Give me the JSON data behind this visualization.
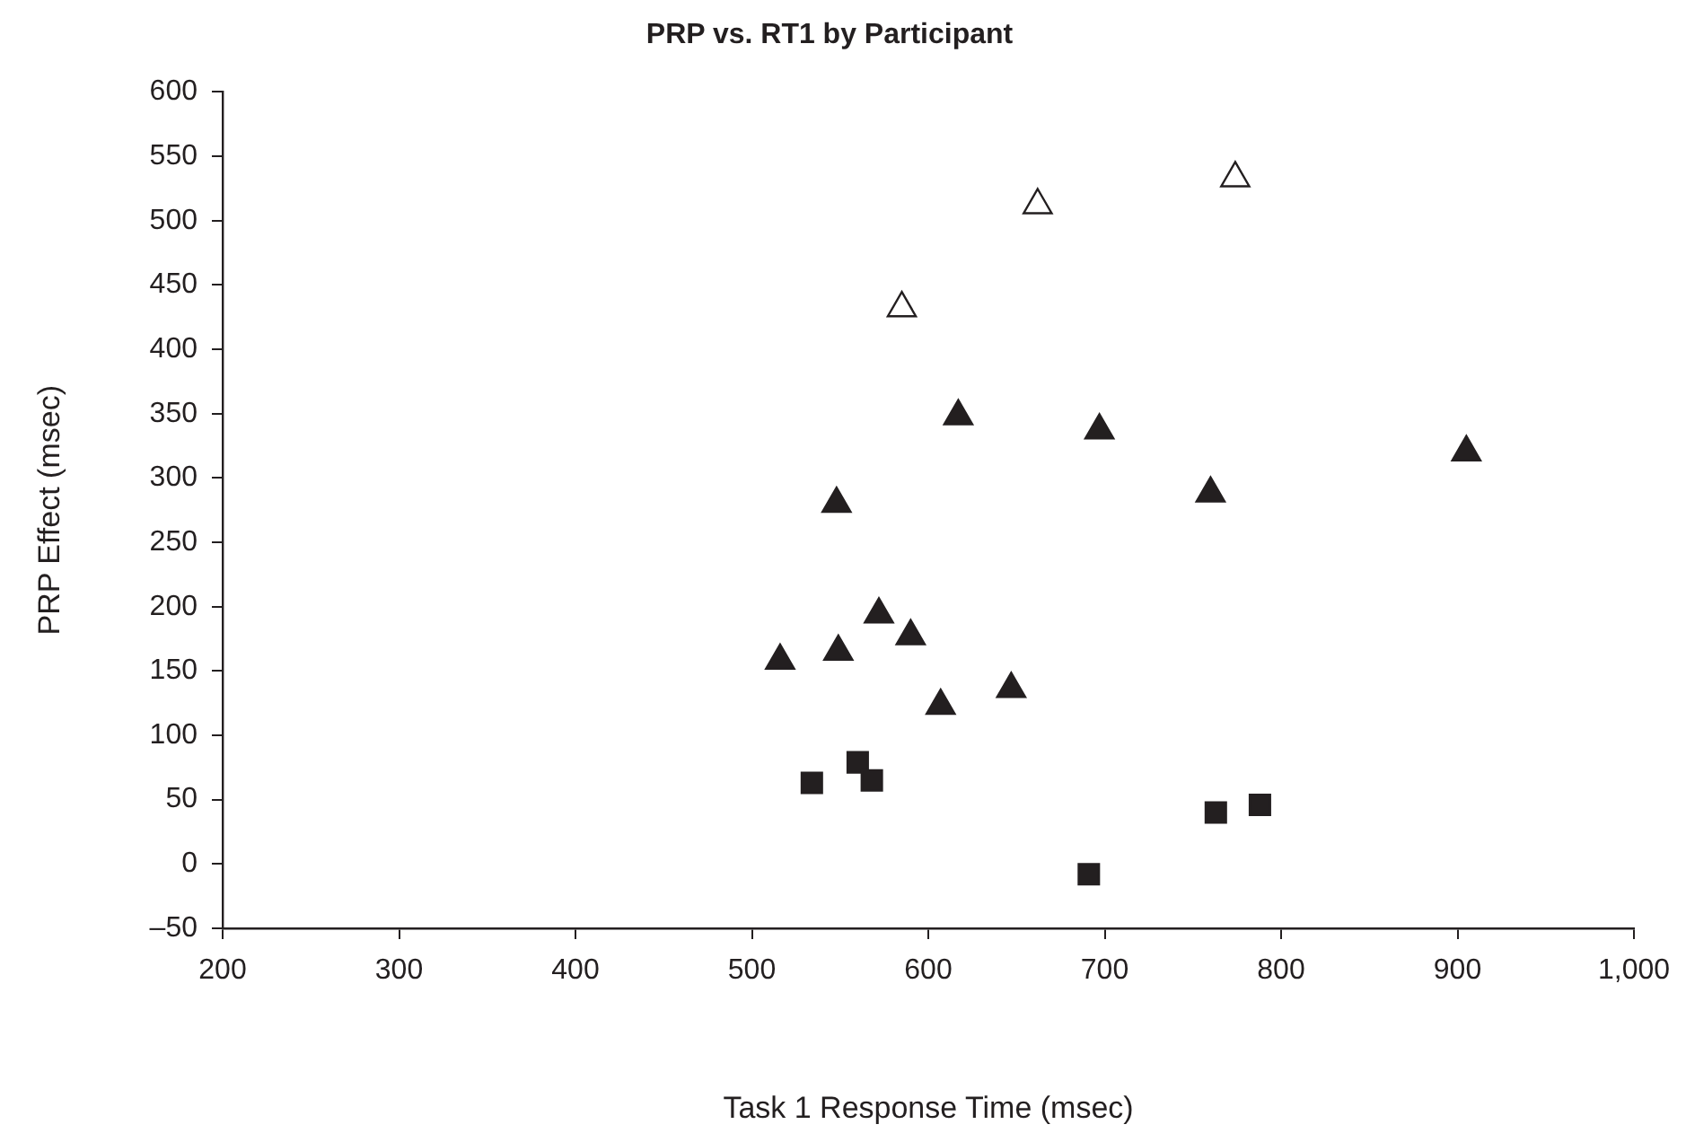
{
  "chart_data": {
    "type": "scatter",
    "title": "PRP vs. RT1 by Participant",
    "xlabel": "Task 1 Response Time (msec)",
    "ylabel": "PRP Effect (msec)",
    "xlim": [
      200,
      1000
    ],
    "xticks": [
      200,
      300,
      400,
      500,
      600,
      700,
      800,
      900,
      {
        "value": 1000,
        "label": "1,000"
      }
    ],
    "ylim": [
      -50,
      600
    ],
    "yticks": [
      {
        "value": -50,
        "label": "–50"
      },
      0,
      50,
      100,
      150,
      200,
      250,
      300,
      350,
      400,
      450,
      500,
      550,
      600
    ],
    "grid": false,
    "legend": false,
    "series": [
      {
        "color": "#231f20",
        "marker": "triangle",
        "x": [
          516,
          549,
          572,
          590,
          607,
          647,
          617,
          697,
          760,
          905,
          548
        ],
        "values": [
          158,
          165,
          194,
          177,
          123,
          136,
          348,
          337,
          288,
          320,
          280
        ]
      },
      {
        "color": "#231f20",
        "marker": "square",
        "x": [
          534,
          560,
          568,
          691,
          763,
          788
        ],
        "values": [
          63,
          79,
          65,
          -8,
          40,
          46
        ]
      },
      {
        "color": "#ffffff",
        "marker": "triangle",
        "x": [
          585,
          662,
          774
        ],
        "values": [
          432,
          512,
          533
        ]
      }
    ]
  }
}
